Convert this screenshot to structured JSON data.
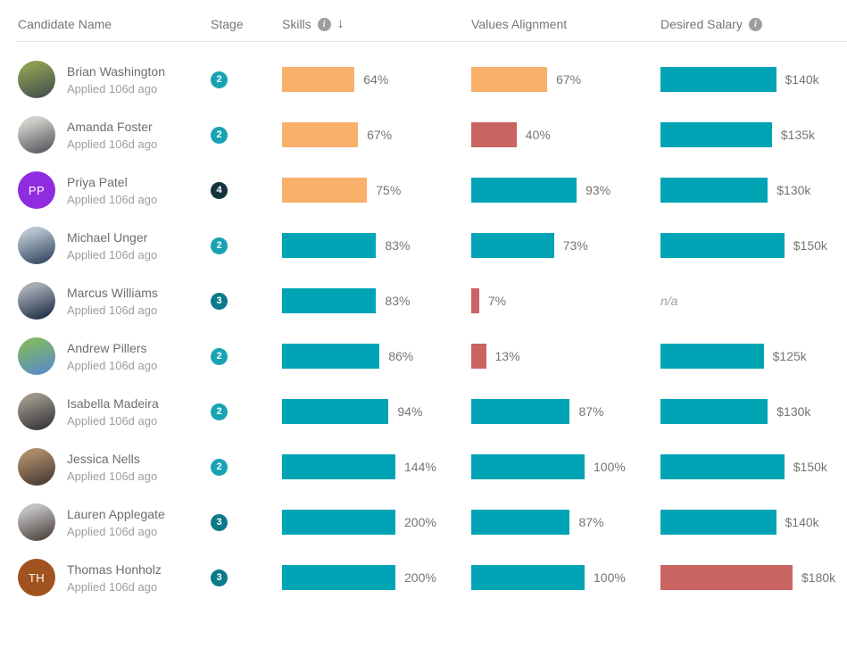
{
  "header": {
    "candidate": "Candidate Name",
    "stage": "Stage",
    "skills": "Skills",
    "values": "Values Alignment",
    "salary": "Desired Salary",
    "info_glyph": "i",
    "sort_desc_glyph": "↓"
  },
  "colors": {
    "orange": "#f8b06a",
    "teal": "#00a4b4",
    "red": "#c96463",
    "stage2": "#17a3b3",
    "stage3": "#0b7a8a",
    "stage4": "#14333c"
  },
  "rows": [
    {
      "name": "Brian Washington",
      "applied": "Applied 106d ago",
      "avatar": {
        "kind": "photo",
        "c1": "#8a9a52",
        "c2": "#4c584e"
      },
      "stage": {
        "number": "2",
        "color_key": "stage2"
      },
      "skills": {
        "value": 64,
        "label": "64%",
        "color": "orange"
      },
      "values": {
        "value": 67,
        "label": "67%",
        "color": "orange"
      },
      "salary": {
        "value": 140,
        "label": "$140k",
        "color": "teal"
      }
    },
    {
      "name": "Amanda Foster",
      "applied": "Applied 106d ago",
      "avatar": {
        "kind": "photo",
        "c1": "#cfcdc8",
        "c2": "#62646a"
      },
      "stage": {
        "number": "2",
        "color_key": "stage2"
      },
      "skills": {
        "value": 67,
        "label": "67%",
        "color": "orange"
      },
      "values": {
        "value": 40,
        "label": "40%",
        "color": "red"
      },
      "salary": {
        "value": 135,
        "label": "$135k",
        "color": "teal"
      }
    },
    {
      "name": "Priya Patel",
      "applied": "Applied 106d ago",
      "avatar": {
        "kind": "initials",
        "initials": "PP",
        "bg": "#8f2ce0"
      },
      "stage": {
        "number": "4",
        "color_key": "stage4"
      },
      "skills": {
        "value": 75,
        "label": "75%",
        "color": "orange"
      },
      "values": {
        "value": 93,
        "label": "93%",
        "color": "teal"
      },
      "salary": {
        "value": 130,
        "label": "$130k",
        "color": "teal"
      }
    },
    {
      "name": "Michael Unger",
      "applied": "Applied 106d ago",
      "avatar": {
        "kind": "photo",
        "c1": "#b5c2cd",
        "c2": "#41536b"
      },
      "stage": {
        "number": "2",
        "color_key": "stage2"
      },
      "skills": {
        "value": 83,
        "label": "83%",
        "color": "teal"
      },
      "values": {
        "value": 73,
        "label": "73%",
        "color": "teal"
      },
      "salary": {
        "value": 150,
        "label": "$150k",
        "color": "teal"
      }
    },
    {
      "name": "Marcus Williams",
      "applied": "Applied 106d ago",
      "avatar": {
        "kind": "photo",
        "c1": "#a3abb3",
        "c2": "#2c3950"
      },
      "stage": {
        "number": "3",
        "color_key": "stage3"
      },
      "skills": {
        "value": 83,
        "label": "83%",
        "color": "teal"
      },
      "values": {
        "value": 7,
        "label": "7%",
        "color": "red"
      },
      "salary": {
        "value": null,
        "label": "n/a",
        "color": null
      }
    },
    {
      "name": "Andrew Pillers",
      "applied": "Applied 106d ago",
      "avatar": {
        "kind": "photo",
        "c1": "#7fb469",
        "c2": "#5b8fc0"
      },
      "stage": {
        "number": "2",
        "color_key": "stage2"
      },
      "skills": {
        "value": 86,
        "label": "86%",
        "color": "teal"
      },
      "values": {
        "value": 13,
        "label": "13%",
        "color": "red"
      },
      "salary": {
        "value": 125,
        "label": "$125k",
        "color": "teal"
      }
    },
    {
      "name": "Isabella Madeira",
      "applied": "Applied 106d ago",
      "avatar": {
        "kind": "photo",
        "c1": "#9b9288",
        "c2": "#3f3e41"
      },
      "stage": {
        "number": "2",
        "color_key": "stage2"
      },
      "skills": {
        "value": 94,
        "label": "94%",
        "color": "teal"
      },
      "values": {
        "value": 87,
        "label": "87%",
        "color": "teal"
      },
      "salary": {
        "value": 130,
        "label": "$130k",
        "color": "teal"
      }
    },
    {
      "name": "Jessica Nells",
      "applied": "Applied 106d ago",
      "avatar": {
        "kind": "photo",
        "c1": "#a98a67",
        "c2": "#53413a"
      },
      "stage": {
        "number": "2",
        "color_key": "stage2"
      },
      "skills": {
        "value": 144,
        "label": "144%",
        "color": "teal"
      },
      "values": {
        "value": 100,
        "label": "100%",
        "color": "teal"
      },
      "salary": {
        "value": 150,
        "label": "$150k",
        "color": "teal"
      }
    },
    {
      "name": "Lauren Applegate",
      "applied": "Applied 106d ago",
      "avatar": {
        "kind": "photo",
        "c1": "#c0bfc1",
        "c2": "#59504b"
      },
      "stage": {
        "number": "3",
        "color_key": "stage3"
      },
      "skills": {
        "value": 200,
        "label": "200%",
        "color": "teal"
      },
      "values": {
        "value": 87,
        "label": "87%",
        "color": "teal"
      },
      "salary": {
        "value": 140,
        "label": "$140k",
        "color": "teal"
      }
    },
    {
      "name": "Thomas Honholz",
      "applied": "Applied 106d ago",
      "avatar": {
        "kind": "initials",
        "initials": "TH",
        "bg": "#a0531f"
      },
      "stage": {
        "number": "3",
        "color_key": "stage3"
      },
      "skills": {
        "value": 200,
        "label": "200%",
        "color": "teal"
      },
      "values": {
        "value": 100,
        "label": "100%",
        "color": "teal"
      },
      "salary": {
        "value": 180,
        "label": "$180k",
        "color": "red"
      }
    }
  ]
}
